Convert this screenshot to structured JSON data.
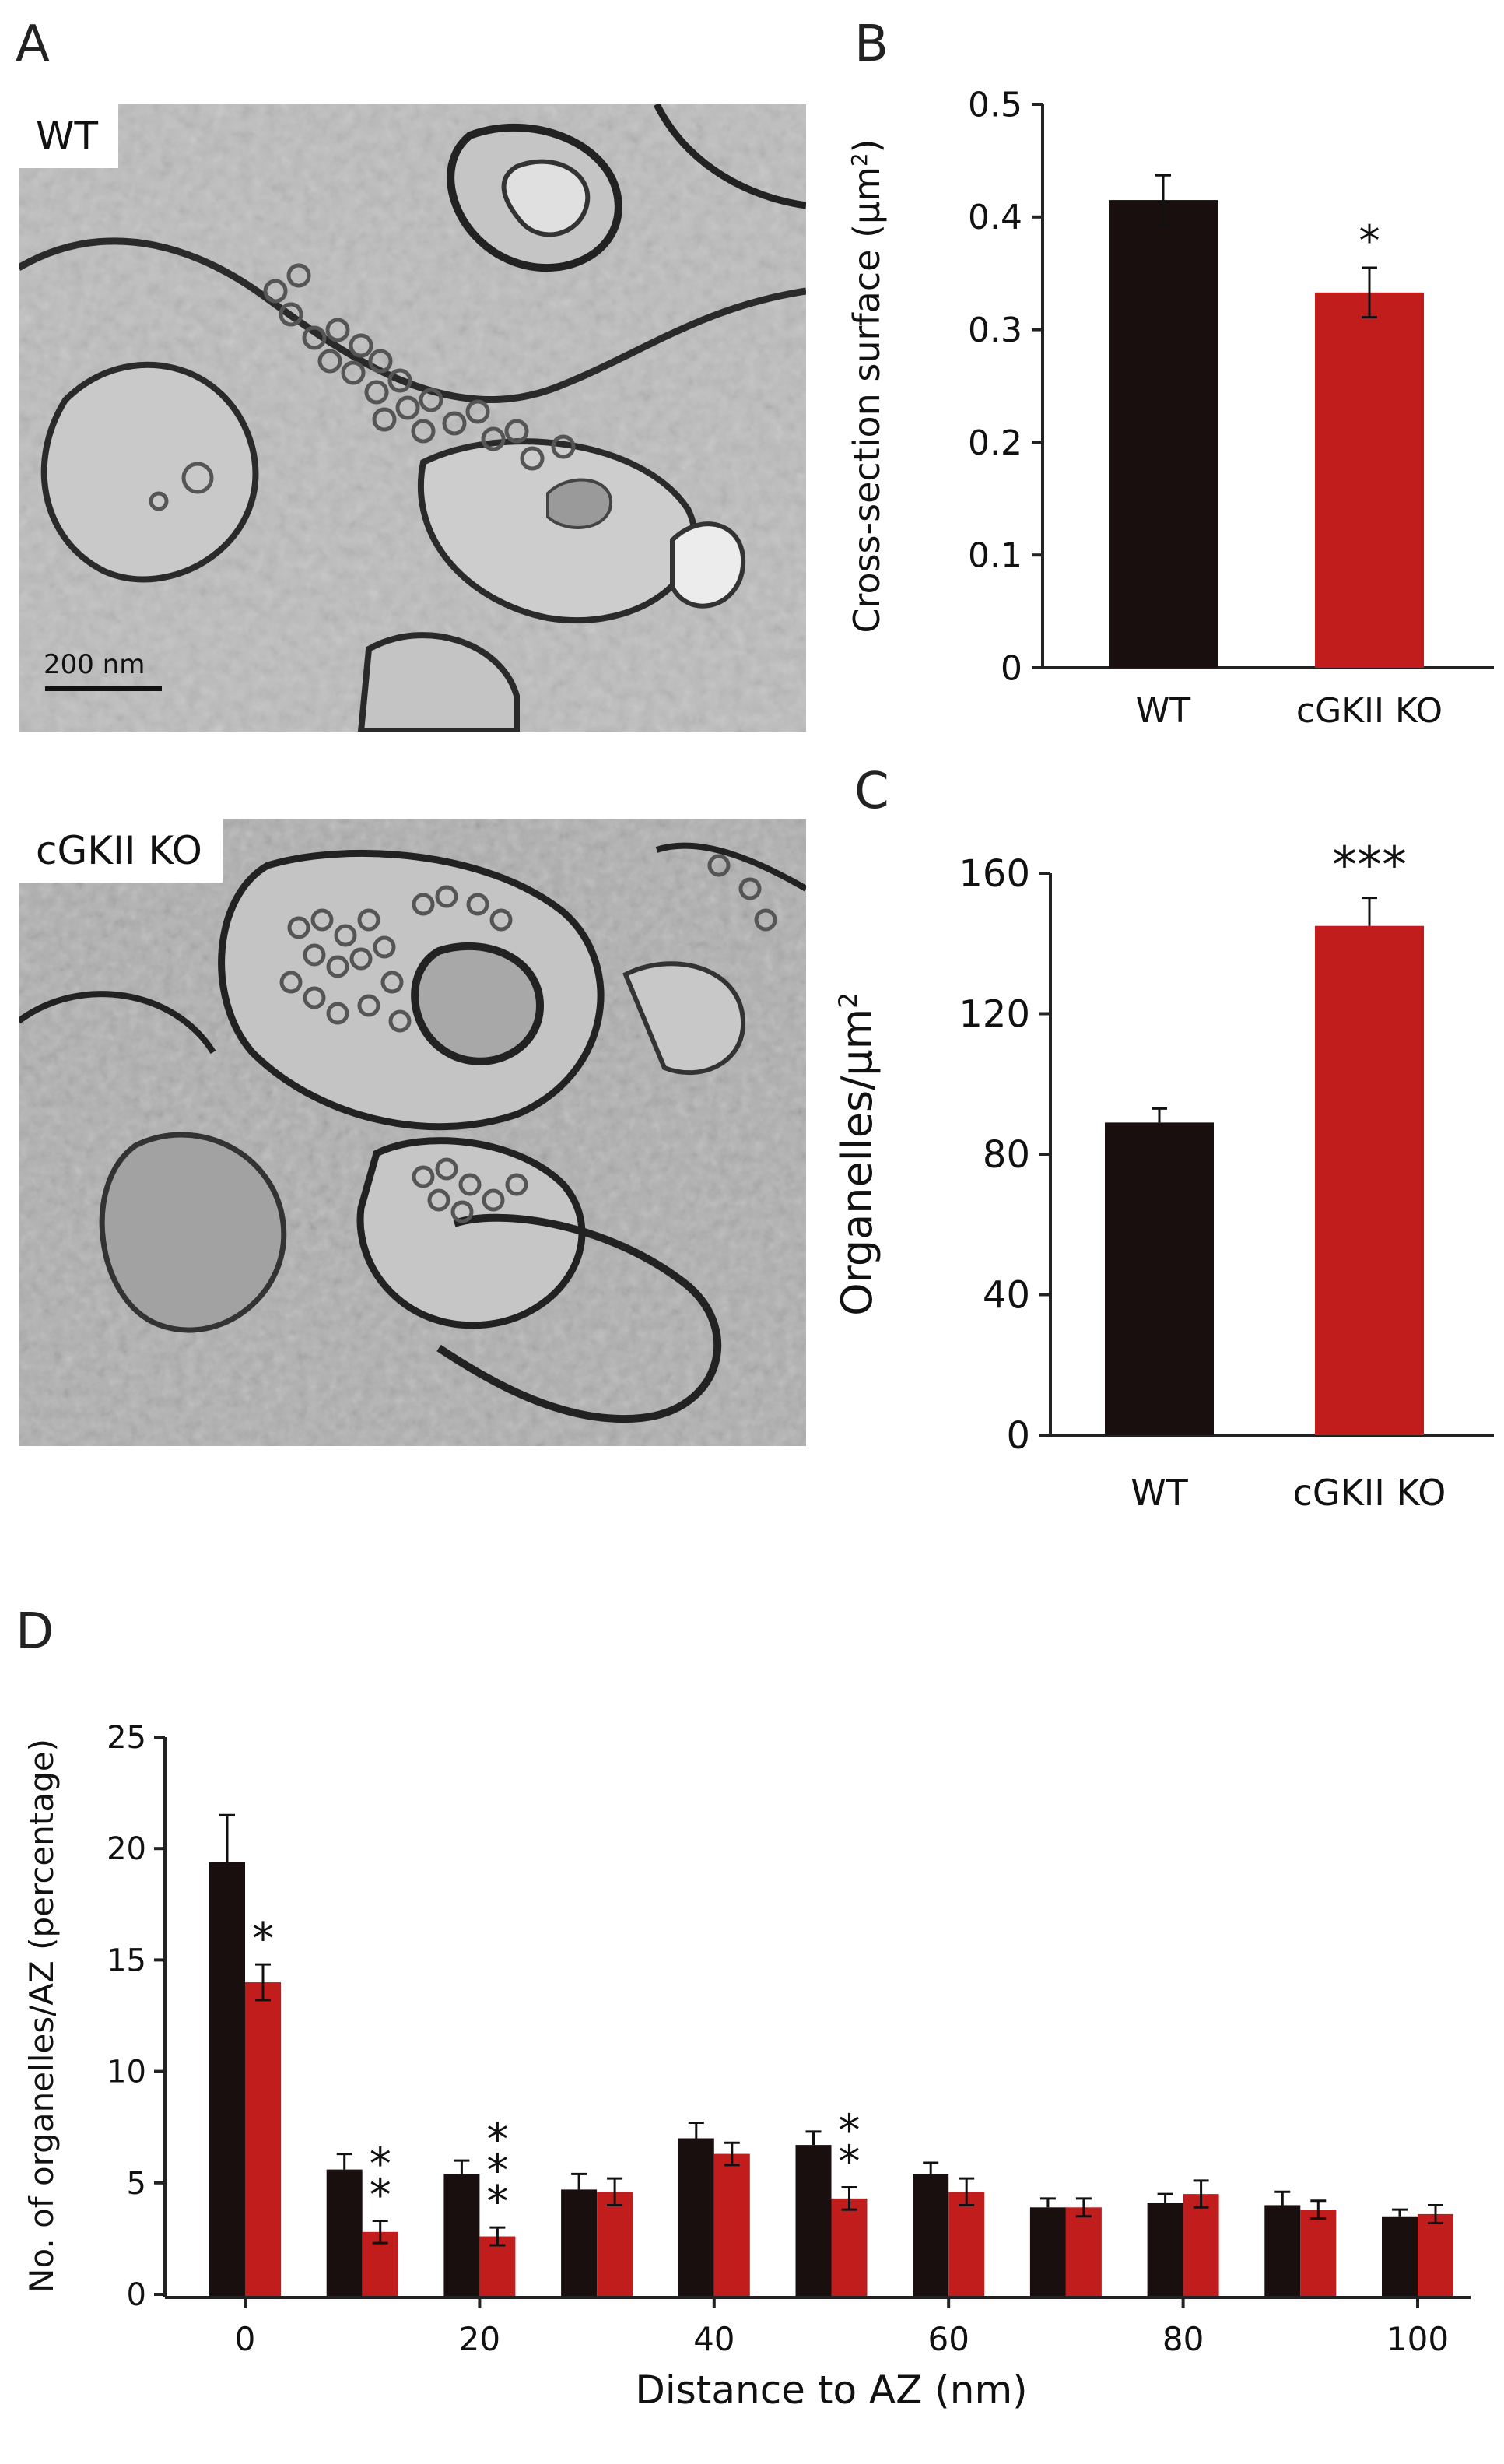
{
  "panels": {
    "A": {
      "letter": "A",
      "wt_label": "WT",
      "ko_label": "cGKII KO",
      "scale_bar": "200 nm"
    },
    "B": {
      "letter": "B"
    },
    "C": {
      "letter": "C"
    },
    "D": {
      "letter": "D"
    }
  },
  "colors": {
    "wt": "#1a0f0f",
    "ko": "#c21d1d",
    "axis": "#222222"
  },
  "chart_data": [
    {
      "id": "B",
      "type": "bar",
      "categories": [
        "WT",
        "cGKII KO"
      ],
      "values": [
        0.415,
        0.333
      ],
      "errors": [
        0.022,
        0.022
      ],
      "annotations": [
        "",
        "*"
      ],
      "ylabel": "Cross-section surface (µm²)",
      "ylabel_main": "Cross-section surface (µm",
      "ylabel_sup": "2",
      "ylabel_end": ")",
      "yticks": [
        "0",
        "0.1",
        "0.2",
        "0.3",
        "0.4",
        "0.5"
      ],
      "ylim": [
        0,
        0.5
      ]
    },
    {
      "id": "C",
      "type": "bar",
      "categories": [
        "WT",
        "cGKII KO"
      ],
      "values": [
        89,
        145
      ],
      "errors": [
        4,
        8
      ],
      "annotations": [
        "",
        "***"
      ],
      "ylabel": "Organelles/µm²",
      "ylabel_main": "Organelles/µm",
      "ylabel_sup": "2",
      "yticks": [
        "0",
        "40",
        "80",
        "120",
        "160"
      ],
      "ylim": [
        0,
        160
      ]
    },
    {
      "id": "D",
      "type": "bar",
      "x": [
        0,
        10,
        20,
        30,
        40,
        50,
        60,
        70,
        80,
        90,
        100
      ],
      "xticks": [
        "0",
        "20",
        "40",
        "60",
        "80",
        "100"
      ],
      "xtick_values": [
        0,
        20,
        40,
        60,
        80,
        100
      ],
      "series": [
        {
          "name": "WT",
          "values": [
            19.4,
            5.6,
            5.4,
            4.7,
            7.0,
            6.7,
            5.4,
            3.9,
            4.1,
            4.0,
            3.5
          ],
          "errors": [
            2.1,
            0.7,
            0.6,
            0.7,
            0.7,
            0.6,
            0.5,
            0.4,
            0.4,
            0.6,
            0.3
          ]
        },
        {
          "name": "cGKII KO",
          "values": [
            14.0,
            2.8,
            2.6,
            4.6,
            6.3,
            4.3,
            4.6,
            3.9,
            4.5,
            3.8,
            3.6
          ],
          "errors": [
            0.8,
            0.5,
            0.4,
            0.6,
            0.5,
            0.5,
            0.6,
            0.4,
            0.6,
            0.4,
            0.4
          ]
        }
      ],
      "annotations": [
        "*",
        "**",
        "***",
        "",
        "",
        "**",
        "",
        "",
        "",
        "",
        ""
      ],
      "xlabel": "Distance to AZ (nm)",
      "ylabel": "No. of organelles/AZ (percentage)",
      "yticks": [
        "0",
        "5",
        "10",
        "15",
        "20",
        "25"
      ],
      "ylim": [
        0,
        25
      ]
    }
  ]
}
